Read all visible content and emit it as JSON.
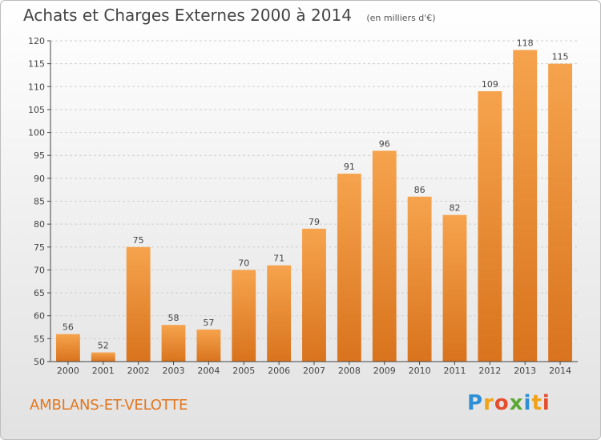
{
  "header": {
    "title": "Achats et Charges Externes 2000 à 2014",
    "unit": "(en milliers d'€)"
  },
  "footer": {
    "city": "AMBLANS-ET-VELOTTE",
    "logo_letters": [
      "P",
      "r",
      "o",
      "x",
      "i",
      "t",
      "i"
    ],
    "logo_colors": [
      "#2e8fd6",
      "#f0a21a",
      "#e54d2e",
      "#5aa832",
      "#2e8fd6",
      "#f0a21a",
      "#e54d2e"
    ]
  },
  "colors": {
    "bar_top": "#f6a34d",
    "bar_bottom": "#d9731d",
    "axis": "#444444",
    "grid": "#cfcfcf"
  },
  "chart_data": {
    "type": "bar",
    "title": "Achats et Charges Externes 2000 à 2014",
    "categories": [
      "2000",
      "2001",
      "2002",
      "2003",
      "2004",
      "2005",
      "2006",
      "2007",
      "2008",
      "2009",
      "2010",
      "2011",
      "2012",
      "2013",
      "2014"
    ],
    "values": [
      56,
      52,
      75,
      58,
      57,
      70,
      71,
      79,
      91,
      96,
      86,
      82,
      109,
      118,
      115
    ],
    "value_labels": [
      "56",
      "52",
      "75",
      "58",
      "57",
      "70",
      "71",
      "79",
      "91",
      "96",
      "86",
      "82",
      "109",
      "118",
      "115"
    ],
    "ylim": [
      50,
      120
    ],
    "yticks": [
      50,
      55,
      60,
      65,
      70,
      75,
      80,
      85,
      90,
      95,
      100,
      105,
      110,
      115,
      120
    ],
    "ytick_labels": [
      "50",
      "55",
      "60",
      "65",
      "70",
      "75",
      "80",
      "85",
      "90",
      "95",
      "100",
      "105",
      "110",
      "115",
      "120"
    ],
    "grid": true,
    "legend": false
  }
}
